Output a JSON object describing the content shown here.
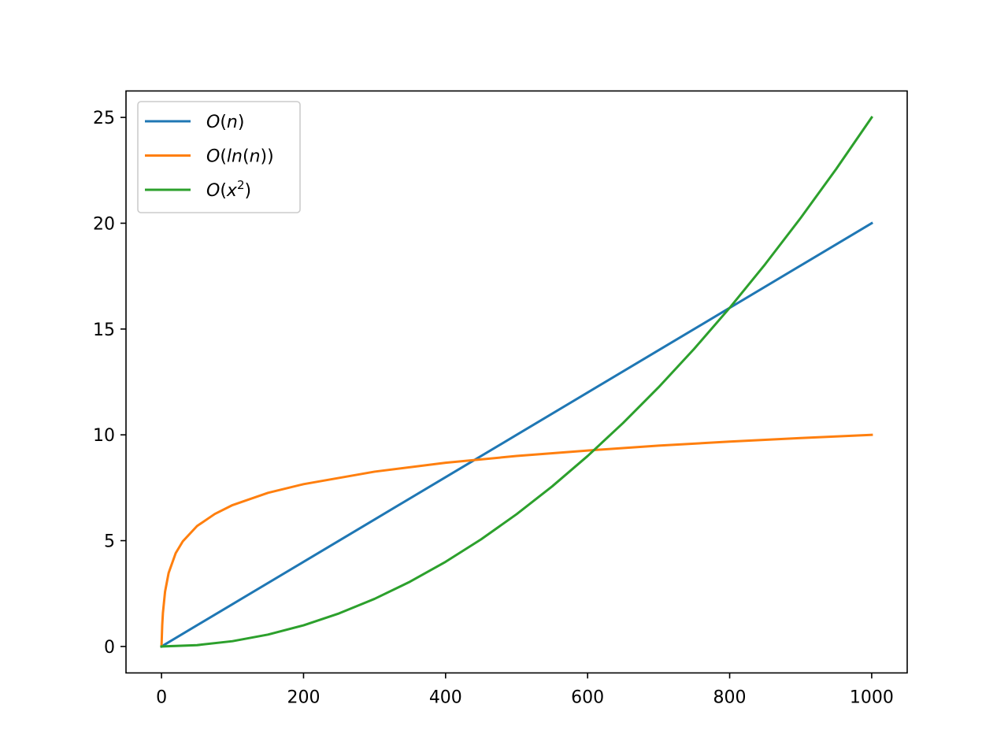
{
  "chart_data": {
    "type": "line",
    "title": "",
    "xlabel": "",
    "ylabel": "",
    "xlim": [
      -50,
      1050
    ],
    "ylim": [
      -1.25,
      26.25
    ],
    "xticks": [
      0,
      200,
      400,
      600,
      800,
      1000
    ],
    "yticks": [
      0,
      5,
      10,
      15,
      20,
      25
    ],
    "xtick_labels": [
      "0",
      "200",
      "400",
      "600",
      "800",
      "1000"
    ],
    "ytick_labels": [
      "0",
      "5",
      "10",
      "15",
      "20",
      "25"
    ],
    "grid": false,
    "legend_position": "upper left",
    "series": [
      {
        "name": "O(n)",
        "legend_parts": [
          [
            "O",
            "it"
          ],
          [
            "(",
            ""
          ],
          [
            "n",
            "it"
          ],
          [
            ")",
            ""
          ]
        ],
        "color": "#1f77b4",
        "x": [
          0,
          100,
          200,
          300,
          400,
          500,
          600,
          700,
          800,
          900,
          1000
        ],
        "y": [
          0,
          2,
          4,
          6,
          8,
          10,
          12,
          14,
          16,
          18,
          20
        ]
      },
      {
        "name": "O(ln(n))",
        "legend_parts": [
          [
            "O",
            "it"
          ],
          [
            "(",
            ""
          ],
          [
            "ln",
            "it"
          ],
          [
            "(",
            ""
          ],
          [
            "n",
            "it"
          ],
          [
            "))",
            ""
          ]
        ],
        "color": "#ff7f0e",
        "x": [
          0,
          1,
          2,
          5,
          10,
          20,
          30,
          50,
          75,
          100,
          150,
          200,
          300,
          400,
          500,
          600,
          700,
          800,
          900,
          1000
        ],
        "y": [
          0,
          1.0,
          1.59,
          2.59,
          3.47,
          4.41,
          4.97,
          5.69,
          6.26,
          6.68,
          7.26,
          7.67,
          8.26,
          8.68,
          9.0,
          9.26,
          9.49,
          9.68,
          9.85,
          10.0
        ]
      },
      {
        "name": "O(x²)",
        "legend_parts": [
          [
            "O",
            "it"
          ],
          [
            "(",
            ""
          ],
          [
            "x",
            "it"
          ],
          [
            "2",
            "sup"
          ],
          [
            ")",
            ""
          ]
        ],
        "color": "#2ca02c",
        "x": [
          0,
          50,
          100,
          150,
          200,
          250,
          300,
          350,
          400,
          450,
          500,
          550,
          600,
          650,
          700,
          750,
          800,
          850,
          900,
          950,
          1000
        ],
        "y": [
          0,
          0.0625,
          0.25,
          0.5625,
          1.0,
          1.5625,
          2.25,
          3.0625,
          4.0,
          5.0625,
          6.25,
          7.5625,
          9.0,
          10.5625,
          12.25,
          14.0625,
          16.0,
          18.0625,
          20.25,
          22.5625,
          25.0
        ]
      }
    ]
  }
}
